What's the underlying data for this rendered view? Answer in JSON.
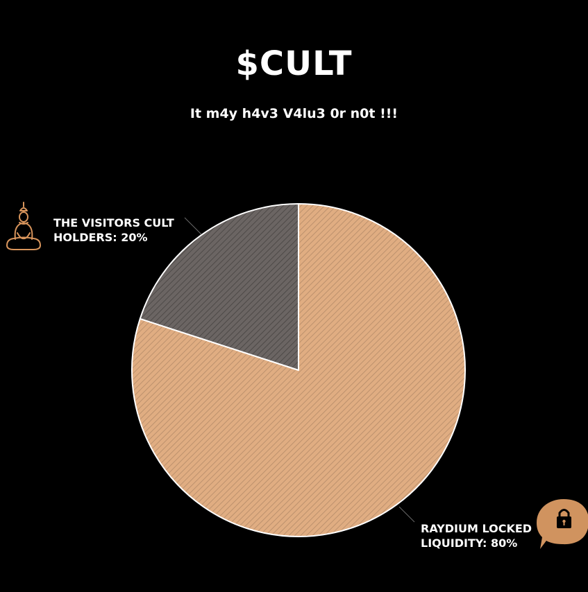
{
  "header": {
    "title": "$CULT",
    "subtitle": "It m4y h4v3 V4lu3 0r n0t !!!"
  },
  "chart_data": {
    "type": "pie",
    "title": "$CULT",
    "subtitle": "It m4y h4v3 V4lu3 0r n0t !!!",
    "slices": [
      {
        "label_lines": [
          "RAYDIUM LOCKED",
          "LIQUIDITY: 80%"
        ],
        "value": 80,
        "color": "#e0ad82",
        "icon": "lock-icon"
      },
      {
        "label_lines": [
          "THE VISITORS CULT",
          "HOLDERS: 20%"
        ],
        "value": 20,
        "color": "#6b6563",
        "icon": "meditating-buddha-icon"
      }
    ],
    "start_angle": "top",
    "direction": "clockwise",
    "slice_pattern": "diagonal-hatch",
    "slice_border_color": "#ffffff",
    "background_color": "#000000"
  }
}
